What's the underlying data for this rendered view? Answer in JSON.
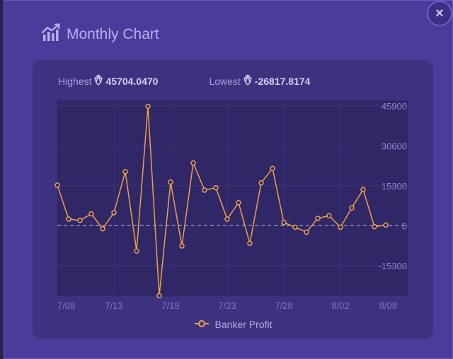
{
  "modal": {
    "title": "Monthly Chart",
    "close_label": "×",
    "title_icon": "chart-line-icon",
    "close_icon": "close-icon"
  },
  "stats": {
    "highest_label": "Highest",
    "highest_value": "45704.0470",
    "lowest_label": "Lowest",
    "lowest_value": "-26817.8174",
    "token_icon": "eos-token-icon"
  },
  "legend": {
    "label": "Banker Profit"
  },
  "colors": {
    "modal_bg": "#4b3b9a",
    "panel_bg": "#3d327f",
    "plot_bg": "#2f2766",
    "series": "#f0a04b",
    "accent_text": "#b9adf4"
  },
  "chart_data": {
    "type": "line",
    "title": "",
    "xlabel": "",
    "ylabel": "",
    "y_axis_position": "right",
    "ylim": [
      -27000,
      48000
    ],
    "yticks": [
      45900,
      30600,
      15300,
      0,
      -15300
    ],
    "x_tick_labels": [
      "7/08",
      "7/13",
      "7/18",
      "7/23",
      "7/28",
      "8/02",
      "8/08"
    ],
    "grid": true,
    "zero_line": "dashed",
    "legend": "bottom-center",
    "series": [
      {
        "name": "Banker Profit",
        "dates": [
          "7/08",
          "7/09",
          "7/10",
          "7/11",
          "7/12",
          "7/13",
          "7/14",
          "7/15",
          "7/16",
          "7/17",
          "7/18",
          "7/19",
          "7/20",
          "7/21",
          "7/22",
          "7/23",
          "7/24",
          "7/25",
          "7/26",
          "7/27",
          "7/28",
          "7/29",
          "7/30",
          "7/31",
          "8/01",
          "8/02",
          "8/03",
          "8/04",
          "8/05",
          "8/06"
        ],
        "values": [
          15500,
          2500,
          2000,
          4500,
          -1200,
          5000,
          20700,
          -9700,
          45704,
          -26818,
          16700,
          -7800,
          24000,
          13600,
          14500,
          2500,
          8800,
          -6800,
          16400,
          21900,
          1200,
          -600,
          -2500,
          2800,
          3800,
          -600,
          6800,
          13800,
          -400,
          200
        ]
      }
    ]
  }
}
